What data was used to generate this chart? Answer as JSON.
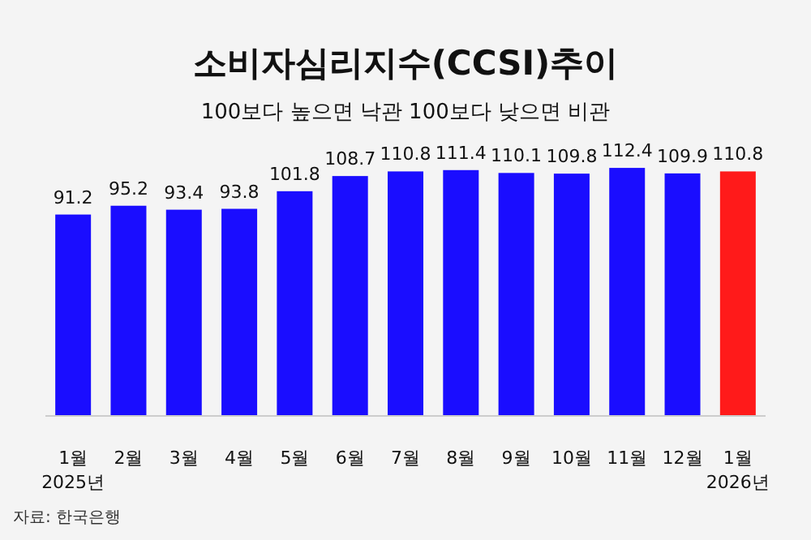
{
  "chart_data": {
    "type": "bar",
    "title": "소비자심리지수(CCSI)추이",
    "subtitle": "100보다 높으면 낙관 100보다 낮으면 비관",
    "categories": [
      "1월 2025년",
      "2월",
      "3월",
      "4월",
      "5월",
      "6월",
      "7월",
      "8월",
      "9월",
      "10월",
      "11월",
      "12월",
      "1월 2026년"
    ],
    "values": [
      91.2,
      95.2,
      93.4,
      93.8,
      101.8,
      108.7,
      110.8,
      111.4,
      110.1,
      109.8,
      112.4,
      109.9,
      110.8
    ],
    "colors": [
      "#1a0dff",
      "#1a0dff",
      "#1a0dff",
      "#1a0dff",
      "#1a0dff",
      "#1a0dff",
      "#1a0dff",
      "#1a0dff",
      "#1a0dff",
      "#1a0dff",
      "#1a0dff",
      "#1a0dff",
      "#ff1a1a"
    ],
    "data_labels": true,
    "annotations": [
      "자료: 한국은행"
    ]
  }
}
